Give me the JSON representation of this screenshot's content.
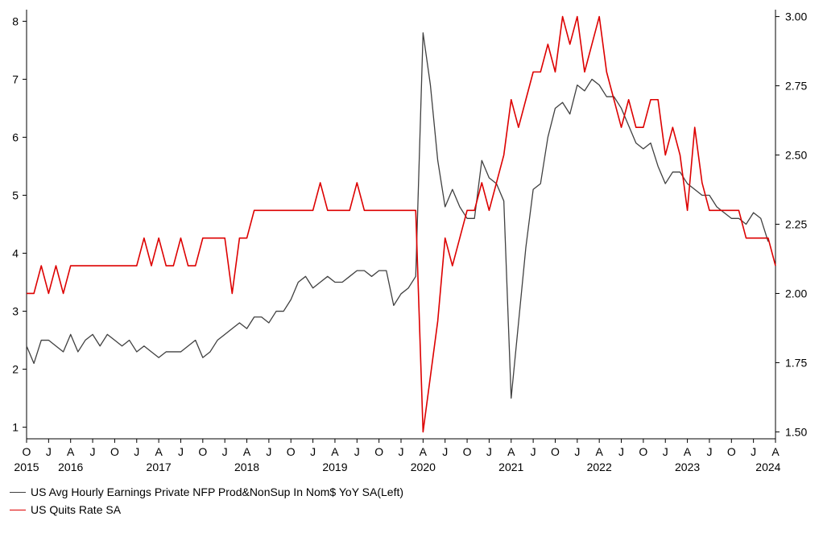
{
  "chart_data": {
    "type": "line",
    "x_start": "2015-10",
    "x_end": "2024-04",
    "x_tick_labels": [
      "O",
      "J",
      "A",
      "J",
      "O",
      "J",
      "A",
      "J",
      "O",
      "J",
      "A",
      "J",
      "O",
      "J",
      "A",
      "J",
      "O",
      "J",
      "A",
      "J",
      "O",
      "J",
      "A",
      "J",
      "O",
      "J",
      "A",
      "J",
      "O",
      "J",
      "A",
      "J",
      "O",
      "J",
      "A"
    ],
    "year_labels": [
      {
        "label": "2015",
        "month": "2015-10"
      },
      {
        "label": "2016",
        "month": "2016-04"
      },
      {
        "label": "2017",
        "month": "2017-04"
      },
      {
        "label": "2018",
        "month": "2018-04"
      },
      {
        "label": "2019",
        "month": "2019-04"
      },
      {
        "label": "2020",
        "month": "2020-04"
      },
      {
        "label": "2021",
        "month": "2021-04"
      },
      {
        "label": "2022",
        "month": "2022-04"
      },
      {
        "label": "2023",
        "month": "2023-04"
      },
      {
        "label": "2024",
        "month": "2024-03"
      }
    ],
    "left_axis": {
      "ylim": [
        0.8,
        8.2
      ],
      "ticks": [
        1,
        2,
        3,
        4,
        5,
        6,
        7,
        8
      ]
    },
    "right_axis": {
      "ylim": [
        1.475,
        3.025
      ],
      "ticks": [
        "1.50",
        "1.75",
        "2.00",
        "2.25",
        "2.50",
        "2.75",
        "3.00"
      ]
    },
    "series": [
      {
        "name": "US Avg Hourly Earnings Private NFP Prod&NonSup In Nom$ YoY SA(Left)",
        "axis": "left",
        "color": "#404040",
        "start": "2015-10",
        "values": [
          2.4,
          2.1,
          2.5,
          2.5,
          2.4,
          2.3,
          2.6,
          2.3,
          2.5,
          2.6,
          2.4,
          2.6,
          2.5,
          2.4,
          2.5,
          2.3,
          2.4,
          2.3,
          2.2,
          2.3,
          2.3,
          2.3,
          2.4,
          2.5,
          2.2,
          2.3,
          2.5,
          2.6,
          2.7,
          2.8,
          2.7,
          2.9,
          2.9,
          2.8,
          3.0,
          3.0,
          3.2,
          3.5,
          3.6,
          3.4,
          3.5,
          3.6,
          3.5,
          3.5,
          3.6,
          3.7,
          3.7,
          3.6,
          3.7,
          3.7,
          3.1,
          3.3,
          3.4,
          3.6,
          7.8,
          6.9,
          5.6,
          4.8,
          5.1,
          4.8,
          4.6,
          4.6,
          5.6,
          5.3,
          5.2,
          4.9,
          1.5,
          2.8,
          4.1,
          5.1,
          5.2,
          6.0,
          6.5,
          6.6,
          6.4,
          6.9,
          6.8,
          7.0,
          6.9,
          6.7,
          6.7,
          6.5,
          6.2,
          5.9,
          5.8,
          5.9,
          5.5,
          5.2,
          5.4,
          5.4,
          5.2,
          5.1,
          5.0,
          5.0,
          4.8,
          4.7,
          4.6,
          4.6,
          4.5,
          4.7,
          4.6,
          4.2
        ]
      },
      {
        "name": "US Quits Rate SA",
        "axis": "right",
        "color": "#dd0000",
        "start": "2015-10",
        "values": [
          2.0,
          2.0,
          2.1,
          2.0,
          2.1,
          2.0,
          2.1,
          2.1,
          2.1,
          2.1,
          2.1,
          2.1,
          2.1,
          2.1,
          2.1,
          2.1,
          2.2,
          2.1,
          2.2,
          2.1,
          2.1,
          2.2,
          2.1,
          2.1,
          2.2,
          2.2,
          2.2,
          2.2,
          2.0,
          2.2,
          2.2,
          2.3,
          2.3,
          2.3,
          2.3,
          2.3,
          2.3,
          2.3,
          2.3,
          2.3,
          2.4,
          2.3,
          2.3,
          2.3,
          2.3,
          2.4,
          2.3,
          2.3,
          2.3,
          2.3,
          2.3,
          2.3,
          2.3,
          2.3,
          1.5,
          1.7,
          1.9,
          2.2,
          2.1,
          2.2,
          2.3,
          2.3,
          2.4,
          2.3,
          2.4,
          2.5,
          2.7,
          2.6,
          2.7,
          2.8,
          2.8,
          2.9,
          2.8,
          3.0,
          2.9,
          3.0,
          2.8,
          2.9,
          3.0,
          2.8,
          2.7,
          2.6,
          2.7,
          2.6,
          2.6,
          2.7,
          2.7,
          2.5,
          2.6,
          2.5,
          2.3,
          2.6,
          2.4,
          2.3,
          2.3,
          2.3,
          2.3,
          2.3,
          2.2,
          2.2,
          2.2,
          2.2,
          2.1
        ]
      }
    ]
  }
}
